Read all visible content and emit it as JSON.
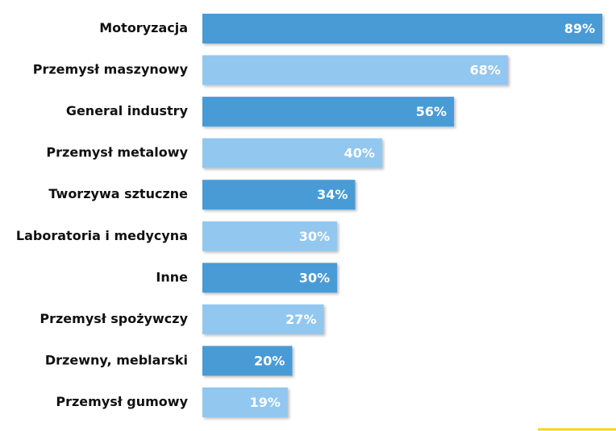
{
  "chart_data": {
    "type": "bar",
    "orientation": "horizontal",
    "categories": [
      "Motoryzacja",
      "Przemysł maszynowy",
      "General industry",
      "Przemysł metalowy",
      "Tworzywa sztuczne",
      "Laboratoria i medycyna",
      "Inne",
      "Przemysł spożywczy",
      "Drzewny, meblarski",
      "Przemysł gumowy"
    ],
    "values": [
      89,
      68,
      56,
      40,
      34,
      30,
      30,
      27,
      20,
      19
    ],
    "value_labels": [
      "89%",
      "68%",
      "56%",
      "40%",
      "34%",
      "30%",
      "30%",
      "27%",
      "20%",
      "19%"
    ],
    "colors": [
      "#4a9bd6",
      "#92c7ef",
      "#4a9bd6",
      "#92c7ef",
      "#4a9bd6",
      "#92c7ef",
      "#4a9bd6",
      "#92c7ef",
      "#4a9bd6",
      "#92c7ef"
    ]
  }
}
